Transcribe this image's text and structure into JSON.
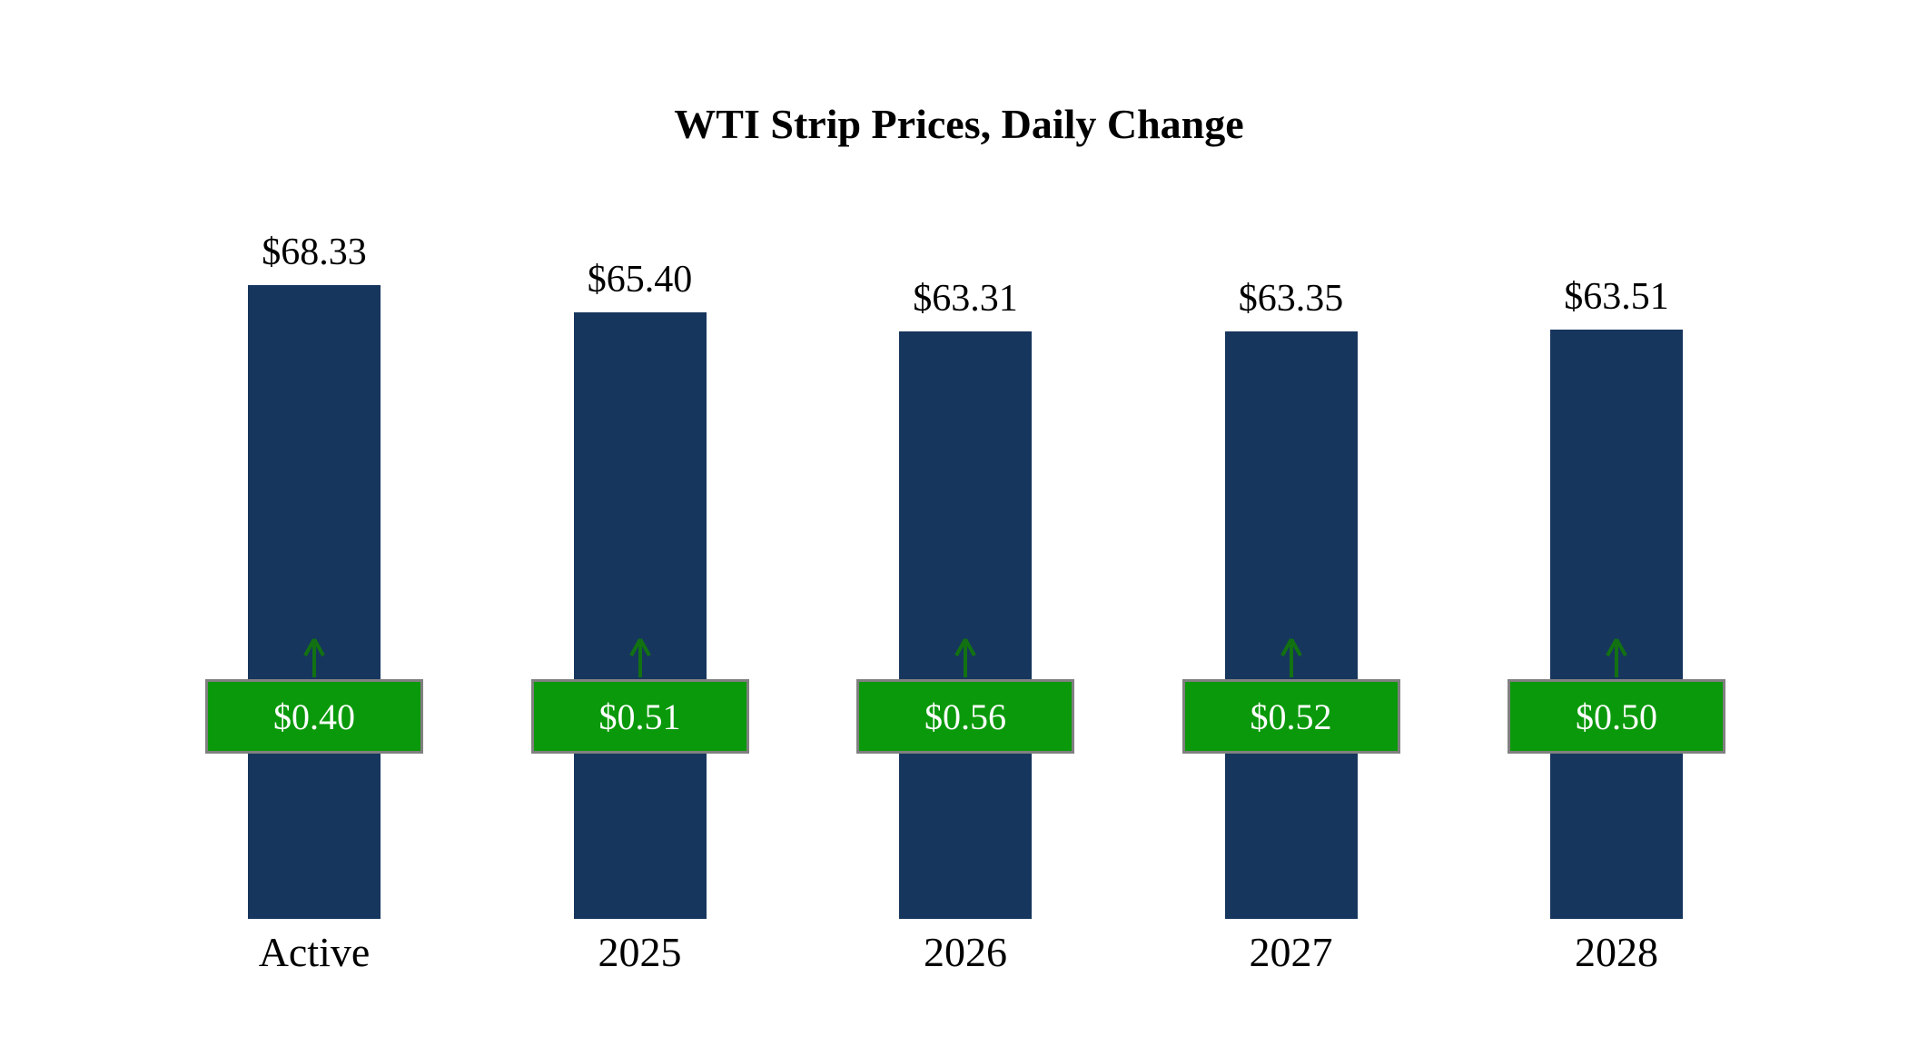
{
  "title": "WTI Strip Prices, Daily Change",
  "chart_data": {
    "type": "bar",
    "title": "WTI Strip Prices, Daily Change",
    "categories": [
      "Active",
      "2025",
      "2026",
      "2027",
      "2028"
    ],
    "values": [
      68.33,
      65.4,
      63.31,
      63.35,
      63.51
    ],
    "value_labels": [
      "$68.33",
      "$65.40",
      "$63.31",
      "$63.35",
      "$63.51"
    ],
    "changes": [
      0.4,
      0.51,
      0.56,
      0.52,
      0.5
    ],
    "change_labels": [
      "$0.40",
      "$0.51",
      "$0.56",
      "$0.52",
      "$0.50"
    ],
    "xlabel": "",
    "ylabel": "",
    "ylim": [
      0,
      68.33
    ],
    "grid": false,
    "legend": "none",
    "colors": {
      "bar": "#17365d",
      "badge": "#0a990a",
      "badge_border": "#808080",
      "badge_text": "#ffffff",
      "arrow": "#127212"
    }
  }
}
